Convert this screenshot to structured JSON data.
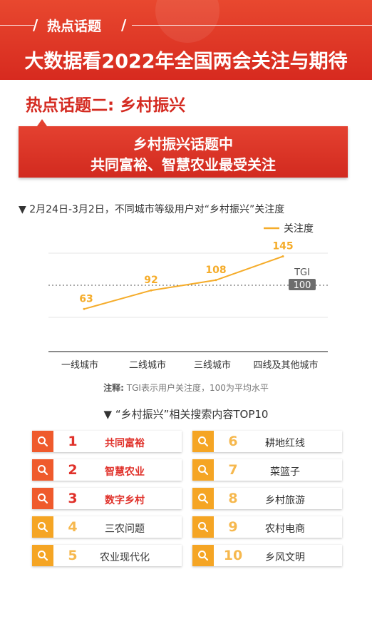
{
  "header": {
    "tag": "热点话题",
    "title": "大数据看2022年全国两会关注与期待"
  },
  "topic": {
    "title": "热点话题二: 乡村振兴",
    "callout_line1": "乡村振兴话题中",
    "callout_line2": "共同富裕、智慧农业最受关注"
  },
  "chart_subtitle": "▼ 2月24日-3月2日，不同城市等级用户对“乡村振兴”关注度",
  "chart_data": {
    "type": "line",
    "categories": [
      "一线城市",
      "二线城市",
      "三线城市",
      "四线及其他城市"
    ],
    "series": [
      {
        "name": "关注度",
        "values": [
          63,
          92,
          108,
          145
        ]
      }
    ],
    "reference_line": {
      "label": "TGI",
      "value": 100
    },
    "ylim": [
      0,
      200
    ],
    "legend_position": "top-right",
    "grid": true,
    "line_color": "#f5ac2a"
  },
  "chart_note": {
    "label": "注释:",
    "text": "TGI表示用户关注度，100为平均水平"
  },
  "search": {
    "title": "▼ “乡村振兴”相关搜索内容TOP10",
    "items": [
      {
        "rank": "1",
        "term": "共同富裕"
      },
      {
        "rank": "2",
        "term": "智慧农业"
      },
      {
        "rank": "3",
        "term": "数字乡村"
      },
      {
        "rank": "4",
        "term": "三农问题"
      },
      {
        "rank": "5",
        "term": "农业现代化"
      },
      {
        "rank": "6",
        "term": "耕地红线"
      },
      {
        "rank": "7",
        "term": "菜篮子"
      },
      {
        "rank": "8",
        "term": "乡村旅游"
      },
      {
        "rank": "9",
        "term": "农村电商"
      },
      {
        "rank": "10",
        "term": "乡风文明"
      }
    ]
  },
  "colors": {
    "brand_red": "#d72a1f",
    "top_orange": "#ef5a2c",
    "rest_orange": "#f5a524",
    "top_text": "#e0312a",
    "rest_rank": "#f6b84e"
  },
  "icons": {
    "search": "search-icon"
  }
}
